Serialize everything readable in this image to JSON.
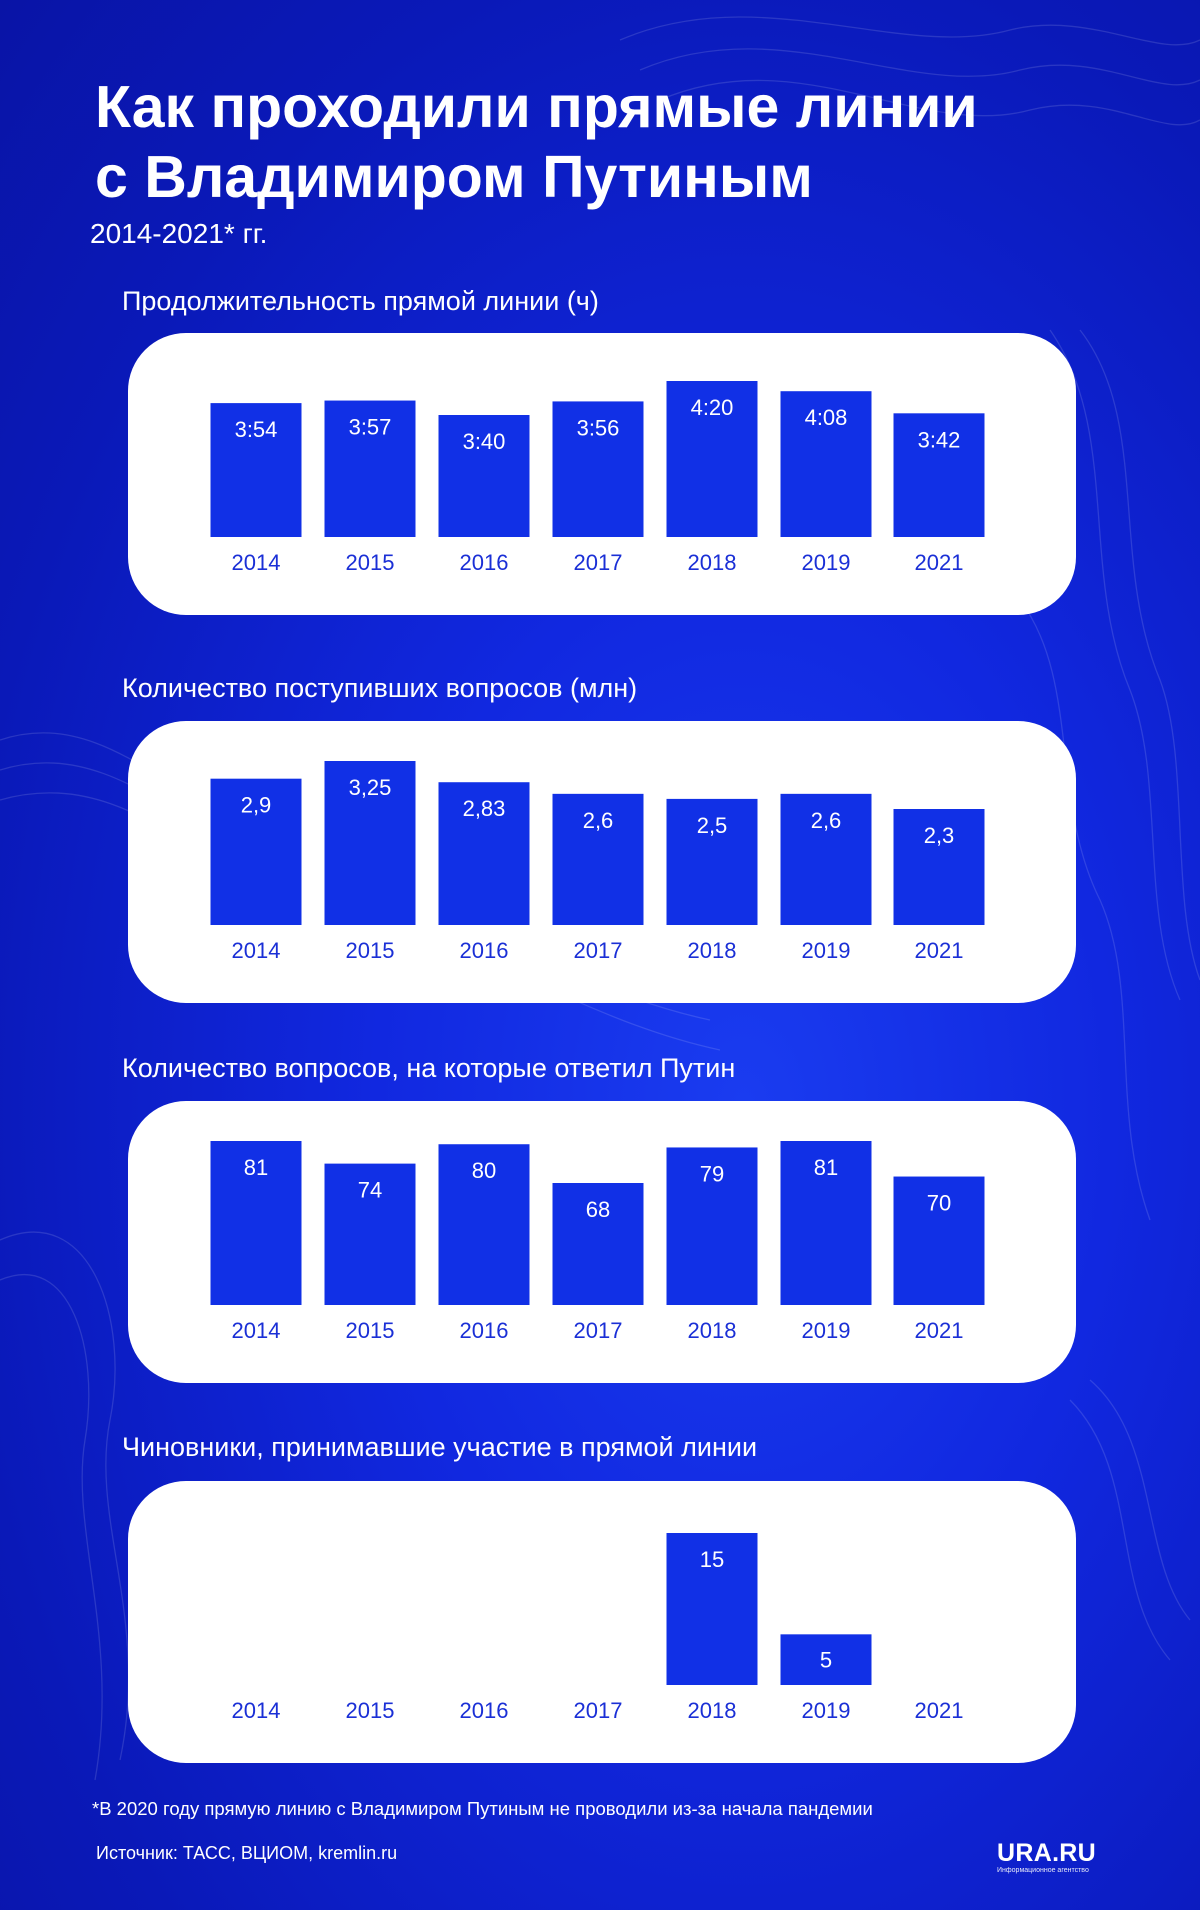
{
  "header": {
    "title": "Как проходили прямые линии\nс Владимиром Путиным",
    "subtitle": "2014-2021* гг."
  },
  "colors": {
    "background": "#1128e0",
    "bar": "#1130e6",
    "panel": "#ffffff",
    "year_label": "#1a2fd6"
  },
  "chart_data": [
    {
      "type": "bar",
      "title": "Продолжительность прямой линии (ч)",
      "categories": [
        "2014",
        "2015",
        "2016",
        "2017",
        "2018",
        "2019",
        "2021"
      ],
      "values": [
        3.9,
        3.95,
        3.667,
        3.933,
        4.333,
        4.133,
        3.7
      ],
      "labels": [
        "3:54",
        "3:57",
        "3:40",
        "3:56",
        "4:20",
        "4:08",
        "3:42"
      ]
    },
    {
      "type": "bar",
      "title": "Количество поступивших вопросов (млн)",
      "categories": [
        "2014",
        "2015",
        "2016",
        "2017",
        "2018",
        "2019",
        "2021"
      ],
      "values": [
        2.9,
        3.25,
        2.83,
        2.6,
        2.5,
        2.6,
        2.3
      ],
      "labels": [
        "2,9",
        "3,25",
        "2,83",
        "2,6",
        "2,5",
        "2,6",
        "2,3"
      ]
    },
    {
      "type": "bar",
      "title": "Количество вопросов, на которые ответил Путин",
      "categories": [
        "2014",
        "2015",
        "2016",
        "2017",
        "2018",
        "2019",
        "2021"
      ],
      "values": [
        81,
        74,
        80,
        68,
        79,
        81,
        70
      ],
      "labels": [
        "81",
        "74",
        "80",
        "68",
        "79",
        "81",
        "70"
      ]
    },
    {
      "type": "bar",
      "title": "Чиновники, принимавшие участие в прямой линии",
      "categories": [
        "2014",
        "2015",
        "2016",
        "2017",
        "2018",
        "2019",
        "2021"
      ],
      "values": [
        null,
        null,
        null,
        null,
        15,
        5,
        null
      ],
      "labels": [
        "",
        "",
        "",
        "",
        "15",
        "5",
        ""
      ]
    }
  ],
  "footer": {
    "footnote": "*В 2020 году прямую линию с Владимиром Путиным не проводили из-за начала пандемии",
    "source": "Источник: ТАСС, ВЦИОМ, kremlin.ru",
    "logo": "URA.RU",
    "logo_tagline": "Информационное агентство"
  }
}
